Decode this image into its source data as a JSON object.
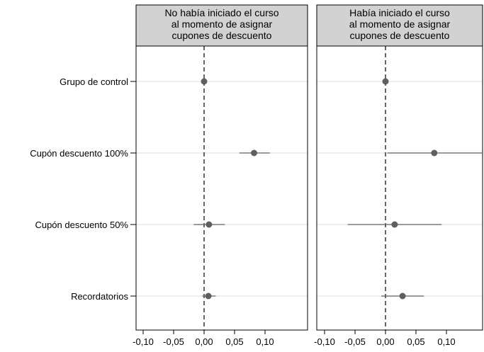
{
  "chart_data": {
    "type": "scatter",
    "subtype": "coefficient-plot",
    "categories": [
      "Grupo de control",
      "Cupón descuento 100%",
      "Cupón descuento 50%",
      "Recordatorios"
    ],
    "xlim": [
      -0.105,
      0.165
    ],
    "x_ticks": [
      -0.1,
      -0.05,
      0.0,
      0.05,
      0.1
    ],
    "x_tick_labels": [
      "-0,10",
      "-0,05",
      "0,00",
      "0,05",
      "0,10"
    ],
    "reference_line": 0,
    "grid": "horizontal",
    "panels": [
      {
        "title_lines": [
          "No había iniciado el curso",
          "al momento de asignar",
          "cupones de descuento"
        ],
        "points": [
          {
            "category": "Grupo de control",
            "estimate": 0.0,
            "ci_low": 0.0,
            "ci_high": 0.0
          },
          {
            "category": "Cupón descuento 100%",
            "estimate": 0.082,
            "ci_low": 0.058,
            "ci_high": 0.108
          },
          {
            "category": "Cupón descuento 50%",
            "estimate": 0.008,
            "ci_low": -0.017,
            "ci_high": 0.034
          },
          {
            "category": "Recordatorios",
            "estimate": 0.007,
            "ci_low": -0.003,
            "ci_high": 0.019
          }
        ]
      },
      {
        "title_lines": [
          "Había iniciado el curso",
          "al momento de asignar",
          "cupones de descuento"
        ],
        "points": [
          {
            "category": "Grupo de control",
            "estimate": 0.0,
            "ci_low": 0.0,
            "ci_high": 0.0
          },
          {
            "category": "Cupón descuento 100%",
            "estimate": 0.08,
            "ci_low": 0.003,
            "ci_high": 0.16
          },
          {
            "category": "Cupón descuento 50%",
            "estimate": 0.015,
            "ci_low": -0.062,
            "ci_high": 0.092
          },
          {
            "category": "Recordatorios",
            "estimate": 0.028,
            "ci_low": -0.007,
            "ci_high": 0.063
          }
        ]
      }
    ],
    "colors": {
      "marker": "#5f5f5f",
      "ci_line": "#5f5f5f",
      "grid": "#dcdcdc",
      "header_fill": "#d2d2d2",
      "frame": "#000000"
    }
  }
}
